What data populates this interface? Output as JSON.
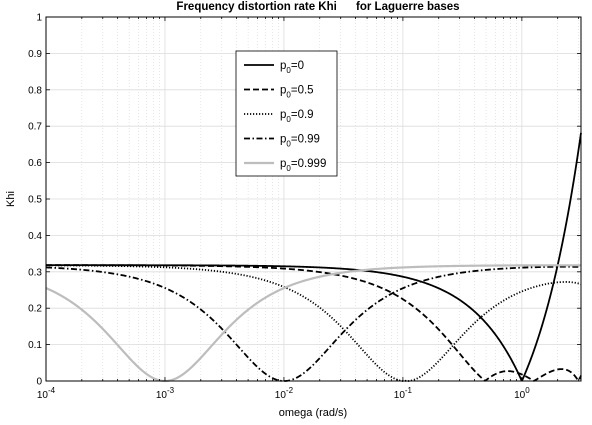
{
  "chart_data": {
    "type": "line",
    "title_main": "Frequency distortion rate Khi",
    "title_tail": "for Laguerre bases",
    "xlabel": "omega (rad/s)",
    "ylabel": "Khi",
    "xscale": "log",
    "xlim": [
      0.0001,
      3.1416
    ],
    "ylim": [
      0,
      1
    ],
    "x_ticks": [
      {
        "value": 0.0001,
        "base": "10",
        "exp": "-4"
      },
      {
        "value": 0.001,
        "base": "10",
        "exp": "-3"
      },
      {
        "value": 0.01,
        "base": "10",
        "exp": "-2"
      },
      {
        "value": 0.1,
        "base": "10",
        "exp": "-1"
      },
      {
        "value": 1,
        "base": "10",
        "exp": "0"
      }
    ],
    "y_ticks": [
      "0",
      "0.1",
      "0.2",
      "0.3",
      "0.4",
      "0.5",
      "0.6",
      "0.7",
      "0.8",
      "0.9",
      "1"
    ],
    "grid": true,
    "legend_position": "top-center",
    "series": [
      {
        "base": "p",
        "sub": "0",
        "value": "=0",
        "p": 0,
        "color": "#000000",
        "style": "solid"
      },
      {
        "base": "p",
        "sub": "0",
        "value": "=0.5",
        "p": 0.5,
        "color": "#000000",
        "style": "dashed"
      },
      {
        "base": "p",
        "sub": "0",
        "value": "=0.9",
        "p": 0.9,
        "color": "#000000",
        "style": "dotted"
      },
      {
        "base": "p",
        "sub": "0",
        "value": "=0.99",
        "p": 0.99,
        "color": "#000000",
        "style": "dashdot"
      },
      {
        "base": "p",
        "sub": "0",
        "value": "=0.999",
        "p": 0.999,
        "color": "#bdbdbd",
        "style": "solid"
      }
    ]
  }
}
